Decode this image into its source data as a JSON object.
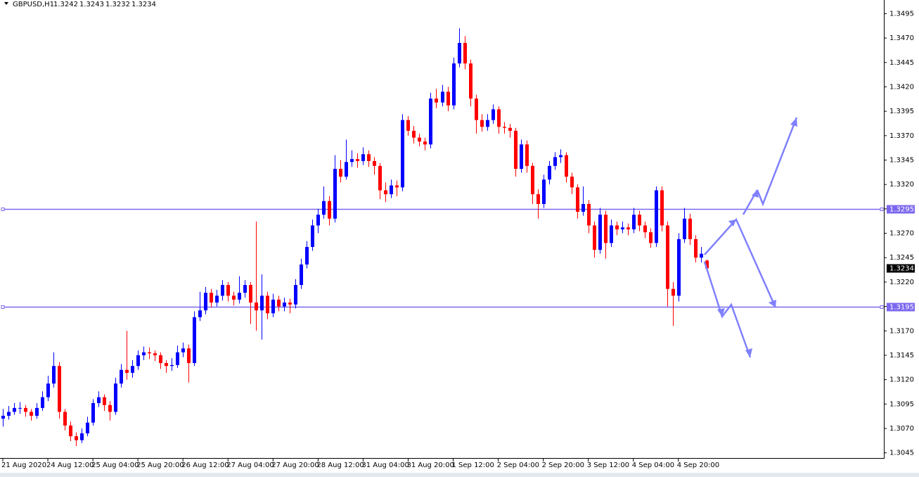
{
  "chart_data": {
    "type": "candlestick",
    "title": "GBPUSD,H1",
    "header_ohlc": [
      1.3242,
      1.3243,
      1.3232,
      1.3234
    ],
    "up_color": "#0000ff",
    "down_color": "#ff0000",
    "grid": false,
    "xlim": [
      -0.5,
      156.5
    ],
    "xticks": [
      {
        "value": 0,
        "label": "21 Aug 2020"
      },
      {
        "value": 8,
        "label": "24 Aug 12:00"
      },
      {
        "value": 16,
        "label": "25 Aug 04:00"
      },
      {
        "value": 24,
        "label": "25 Aug 20:00"
      },
      {
        "value": 32,
        "label": "26 Aug 12:00"
      },
      {
        "value": 40,
        "label": "27 Aug 04:00"
      },
      {
        "value": 48,
        "label": "27 Aug 20:00"
      },
      {
        "value": 56,
        "label": "28 Aug 12:00"
      },
      {
        "value": 64,
        "label": "31 Aug 04:00"
      },
      {
        "value": 72,
        "label": "31 Aug 20:00"
      },
      {
        "value": 80,
        "label": "1 Sep 12:00"
      },
      {
        "value": 88,
        "label": "2 Sep 04:00"
      },
      {
        "value": 96,
        "label": "2 Sep 20:00"
      },
      {
        "value": 104,
        "label": "3 Sep 12:00"
      },
      {
        "value": 112,
        "label": "4 Sep 04:00"
      },
      {
        "value": 120,
        "label": "4 Sep 20:00"
      }
    ],
    "ylim": [
      1.3039,
      1.3509
    ],
    "yticks": [
      1.3495,
      {
        "value": 1.347,
        "label": "1.3470"
      },
      1.3445,
      {
        "value": 1.342,
        "label": "1.3420"
      },
      1.3395,
      {
        "value": 1.337,
        "label": "1.3370"
      },
      1.3345,
      {
        "value": 1.332,
        "label": "1.3320"
      },
      1.3295,
      {
        "value": 1.327,
        "label": "1.3270"
      },
      1.3245,
      {
        "value": 1.322,
        "label": "1.3220"
      },
      1.3195,
      {
        "value": 1.317,
        "label": "1.3170"
      },
      1.3145,
      {
        "value": 1.312,
        "label": "1.3120"
      },
      1.3095,
      {
        "value": 1.307,
        "label": "1.3070"
      },
      1.3045
    ],
    "hlines": [
      1.3295,
      1.3195
    ],
    "hline_color": "#7b68ee",
    "candles": [
      [
        1.308,
        1.309,
        1.3072,
        1.3083
      ],
      [
        1.3083,
        1.3093,
        1.3079,
        1.3087
      ],
      [
        1.3087,
        1.3096,
        1.3084,
        1.3091
      ],
      [
        1.3091,
        1.3097,
        1.3085,
        1.3091
      ],
      [
        1.3091,
        1.3094,
        1.3082,
        1.3087
      ],
      [
        1.3087,
        1.309,
        1.3078,
        1.3083
      ],
      [
        1.3083,
        1.3096,
        1.308,
        1.3091
      ],
      [
        1.3091,
        1.3108,
        1.3088,
        1.3102
      ],
      [
        1.3102,
        1.3124,
        1.3098,
        1.3116
      ],
      [
        1.3116,
        1.3148,
        1.3112,
        1.3134
      ],
      [
        1.3134,
        1.3138,
        1.308,
        1.3087
      ],
      [
        1.3087,
        1.309,
        1.3068,
        1.3073
      ],
      [
        1.3073,
        1.3077,
        1.3057,
        1.3062
      ],
      [
        1.3062,
        1.3066,
        1.3052,
        1.3058
      ],
      [
        1.3058,
        1.307,
        1.3055,
        1.3065
      ],
      [
        1.3065,
        1.3082,
        1.3062,
        1.3076
      ],
      [
        1.3076,
        1.31,
        1.3073,
        1.3096
      ],
      [
        1.3096,
        1.3108,
        1.3092,
        1.3102
      ],
      [
        1.3102,
        1.3105,
        1.3088,
        1.3094
      ],
      [
        1.3094,
        1.3098,
        1.3078,
        1.3087
      ],
      [
        1.3087,
        1.3122,
        1.3084,
        1.3116
      ],
      [
        1.3116,
        1.3136,
        1.3112,
        1.313
      ],
      [
        1.313,
        1.317,
        1.312,
        1.3127
      ],
      [
        1.3127,
        1.314,
        1.3122,
        1.3134
      ],
      [
        1.3134,
        1.315,
        1.313,
        1.3145
      ],
      [
        1.3145,
        1.3154,
        1.314,
        1.3148
      ],
      [
        1.3148,
        1.3153,
        1.3141,
        1.3147
      ],
      [
        1.3147,
        1.315,
        1.3139,
        1.3145
      ],
      [
        1.3145,
        1.3148,
        1.3131,
        1.3137
      ],
      [
        1.3137,
        1.314,
        1.3127,
        1.3134
      ],
      [
        1.3134,
        1.3142,
        1.3129,
        1.3135
      ],
      [
        1.3135,
        1.3155,
        1.3132,
        1.3148
      ],
      [
        1.3148,
        1.3158,
        1.3143,
        1.3152
      ],
      [
        1.3152,
        1.3156,
        1.3117,
        1.3137
      ],
      [
        1.3137,
        1.319,
        1.3134,
        1.3184
      ],
      [
        1.3184,
        1.321,
        1.318,
        1.3191
      ],
      [
        1.3191,
        1.3215,
        1.3187,
        1.3209
      ],
      [
        1.3209,
        1.3213,
        1.3194,
        1.3199
      ],
      [
        1.3199,
        1.3212,
        1.3195,
        1.3206
      ],
      [
        1.3206,
        1.3222,
        1.3201,
        1.3217
      ],
      [
        1.3217,
        1.322,
        1.32,
        1.3206
      ],
      [
        1.3206,
        1.321,
        1.3196,
        1.3202
      ],
      [
        1.3202,
        1.3226,
        1.3198,
        1.3209
      ],
      [
        1.3209,
        1.3222,
        1.3204,
        1.3217
      ],
      [
        1.3217,
        1.322,
        1.3177,
        1.3199
      ],
      [
        1.3199,
        1.3282,
        1.317,
        1.3191
      ],
      [
        1.3191,
        1.3228,
        1.3161,
        1.3206
      ],
      [
        1.3206,
        1.321,
        1.3182,
        1.3188
      ],
      [
        1.3188,
        1.3208,
        1.3184,
        1.3202
      ],
      [
        1.3202,
        1.3206,
        1.319,
        1.3195
      ],
      [
        1.3195,
        1.3204,
        1.319,
        1.3199
      ],
      [
        1.3199,
        1.3203,
        1.3188,
        1.3197
      ],
      [
        1.3197,
        1.3223,
        1.3193,
        1.3217
      ],
      [
        1.3217,
        1.3244,
        1.3213,
        1.3238
      ],
      [
        1.3238,
        1.3262,
        1.3234,
        1.3256
      ],
      [
        1.3256,
        1.3284,
        1.3252,
        1.3278
      ],
      [
        1.3278,
        1.3295,
        1.327,
        1.3289
      ],
      [
        1.3289,
        1.3318,
        1.3285,
        1.3303
      ],
      [
        1.3303,
        1.3308,
        1.3278,
        1.3285
      ],
      [
        1.3285,
        1.335,
        1.3281,
        1.3336
      ],
      [
        1.3336,
        1.3345,
        1.3322,
        1.3328
      ],
      [
        1.3328,
        1.3366,
        1.3325,
        1.3343
      ],
      [
        1.3343,
        1.3355,
        1.3338,
        1.3346
      ],
      [
        1.3346,
        1.3352,
        1.3337,
        1.3344
      ],
      [
        1.3344,
        1.3358,
        1.334,
        1.3351
      ],
      [
        1.3351,
        1.3355,
        1.3338,
        1.3344
      ],
      [
        1.3344,
        1.3348,
        1.333,
        1.3339
      ],
      [
        1.3339,
        1.3342,
        1.3305,
        1.3314
      ],
      [
        1.3314,
        1.3322,
        1.3302,
        1.331
      ],
      [
        1.331,
        1.3325,
        1.3306,
        1.3319
      ],
      [
        1.3319,
        1.3324,
        1.3308,
        1.3317
      ],
      [
        1.3317,
        1.3392,
        1.3313,
        1.3386
      ],
      [
        1.3386,
        1.339,
        1.337,
        1.3375
      ],
      [
        1.3375,
        1.338,
        1.3362,
        1.3368
      ],
      [
        1.3368,
        1.3372,
        1.3359,
        1.3364
      ],
      [
        1.3364,
        1.3368,
        1.3355,
        1.3361
      ],
      [
        1.3361,
        1.3414,
        1.3357,
        1.3408
      ],
      [
        1.3408,
        1.3418,
        1.3398,
        1.3404
      ],
      [
        1.3404,
        1.3422,
        1.34,
        1.3415
      ],
      [
        1.3415,
        1.342,
        1.3395,
        1.3401
      ],
      [
        1.3401,
        1.345,
        1.3397,
        1.3444
      ],
      [
        1.3444,
        1.348,
        1.344,
        1.3465
      ],
      [
        1.3465,
        1.3472,
        1.3438,
        1.3444
      ],
      [
        1.3444,
        1.3448,
        1.34,
        1.3408
      ],
      [
        1.3408,
        1.3412,
        1.3372,
        1.3386
      ],
      [
        1.3386,
        1.3392,
        1.3374,
        1.3379
      ],
      [
        1.3379,
        1.3392,
        1.3375,
        1.3386
      ],
      [
        1.3386,
        1.3402,
        1.3382,
        1.3397
      ],
      [
        1.3397,
        1.34,
        1.3372,
        1.3379
      ],
      [
        1.3379,
        1.3384,
        1.3372,
        1.3378
      ],
      [
        1.3378,
        1.3382,
        1.3368,
        1.3375
      ],
      [
        1.3375,
        1.3378,
        1.3328,
        1.3336
      ],
      [
        1.3336,
        1.3366,
        1.3332,
        1.3361
      ],
      [
        1.3361,
        1.3365,
        1.3332,
        1.3339
      ],
      [
        1.3339,
        1.3342,
        1.33,
        1.331
      ],
      [
        1.331,
        1.3315,
        1.3285,
        1.33
      ],
      [
        1.33,
        1.333,
        1.3296,
        1.3325
      ],
      [
        1.3325,
        1.3344,
        1.332,
        1.3339
      ],
      [
        1.3339,
        1.3353,
        1.3335,
        1.3348
      ],
      [
        1.3348,
        1.3356,
        1.3342,
        1.335
      ],
      [
        1.335,
        1.3353,
        1.3322,
        1.3328
      ],
      [
        1.3328,
        1.3332,
        1.331,
        1.3317
      ],
      [
        1.3317,
        1.332,
        1.3285,
        1.3292
      ],
      [
        1.3292,
        1.3318,
        1.3288,
        1.33
      ],
      [
        1.33,
        1.3304,
        1.327,
        1.3278
      ],
      [
        1.3278,
        1.3282,
        1.3245,
        1.3253
      ],
      [
        1.3253,
        1.3296,
        1.3249,
        1.3289
      ],
      [
        1.3289,
        1.3293,
        1.3244,
        1.326
      ],
      [
        1.326,
        1.3284,
        1.3256,
        1.3278
      ],
      [
        1.3278,
        1.3282,
        1.3268,
        1.3274
      ],
      [
        1.3274,
        1.3282,
        1.327,
        1.3276
      ],
      [
        1.3276,
        1.328,
        1.3268,
        1.3274
      ],
      [
        1.3274,
        1.3296,
        1.327,
        1.3289
      ],
      [
        1.3289,
        1.3293,
        1.3272,
        1.3278
      ],
      [
        1.3278,
        1.3282,
        1.3265,
        1.3271
      ],
      [
        1.3271,
        1.3275,
        1.3255,
        1.326
      ],
      [
        1.326,
        1.3318,
        1.3256,
        1.3314
      ],
      [
        1.3314,
        1.3318,
        1.3272,
        1.3278
      ],
      [
        1.3278,
        1.3282,
        1.3195,
        1.3213
      ],
      [
        1.3213,
        1.322,
        1.3175,
        1.3206
      ],
      [
        1.3206,
        1.327,
        1.32,
        1.3264
      ],
      [
        1.3264,
        1.3296,
        1.326,
        1.3285
      ],
      [
        1.3285,
        1.329,
        1.3258,
        1.3264
      ],
      [
        1.3264,
        1.3268,
        1.324,
        1.3245
      ],
      [
        1.3245,
        1.3256,
        1.324,
        1.3249
      ],
      [
        1.3242,
        1.3243,
        1.3232,
        1.3234
      ]
    ]
  }
}
